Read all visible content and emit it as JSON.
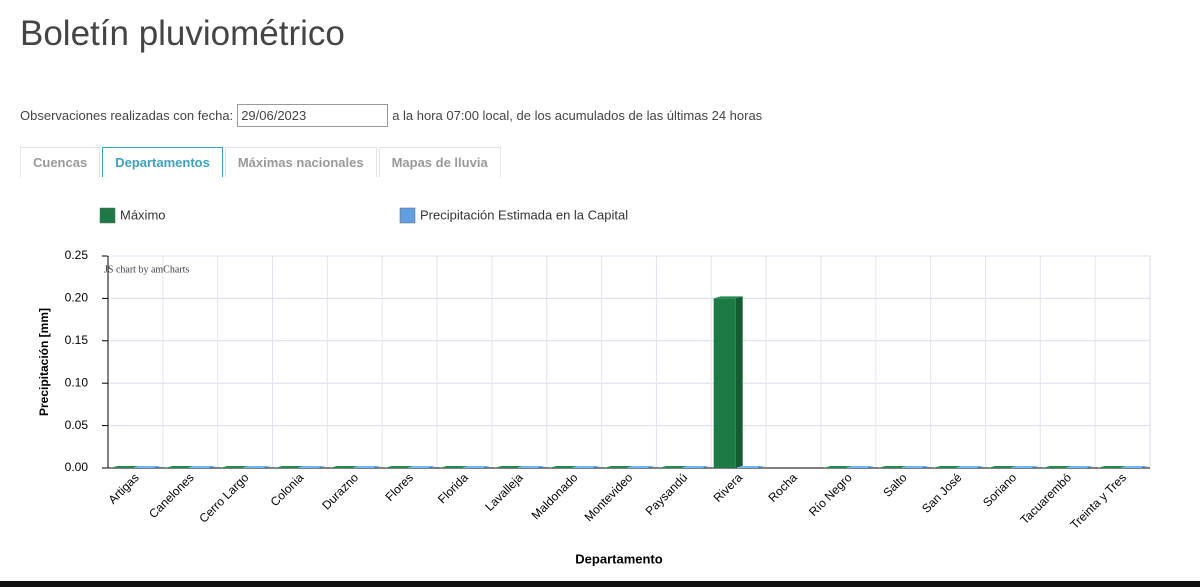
{
  "header": {
    "title": "Boletín pluviométrico"
  },
  "observation": {
    "prefix": "Observaciones realizadas con fecha:",
    "date": "29/06/2023",
    "suffix": "a la hora 07:00 local, de los acumulados de las últimas 24 horas"
  },
  "tabs": [
    "Cuencas",
    "Departamentos",
    "Máximas nacionales",
    "Mapas de lluvia"
  ],
  "chart_data": {
    "type": "bar",
    "watermark": "JS chart by amCharts",
    "x_label": "Departamento",
    "y_label": "Precipitación [mm]",
    "categories": [
      "Artigas",
      "Canelones",
      "Cerro Largo",
      "Colonia",
      "Durazno",
      "Flores",
      "Florida",
      "Lavalleja",
      "Maldonado",
      "Montevideo",
      "Paysandú",
      "Rivera",
      "Rocha",
      "Río Negro",
      "Salto",
      "San José",
      "Soriano",
      "Tacuarembó",
      "Treinta y Tres"
    ],
    "series": [
      {
        "name": "Máximo",
        "color": "#1d7a44",
        "values": [
          0,
          0,
          0,
          0,
          0,
          0,
          0,
          0,
          0,
          0,
          0,
          0.2,
          null,
          0,
          0,
          0,
          0,
          0,
          0
        ]
      },
      {
        "name": "Precipitación Estimada en la Capital",
        "color": "#5f9fe2",
        "values": [
          0,
          0,
          0,
          0,
          0,
          0,
          0,
          0,
          0,
          0,
          0,
          0,
          null,
          0,
          0,
          0,
          0,
          0,
          0
        ]
      }
    ],
    "ylim": [
      0,
      0.25
    ],
    "yticks": [
      {
        "value": 0,
        "label": "0.00"
      },
      0.05,
      {
        "value": 0.1,
        "label": "0.10"
      },
      0.15,
      {
        "value": 0.2,
        "label": "0.20"
      },
      0.25
    ],
    "grid": true
  }
}
